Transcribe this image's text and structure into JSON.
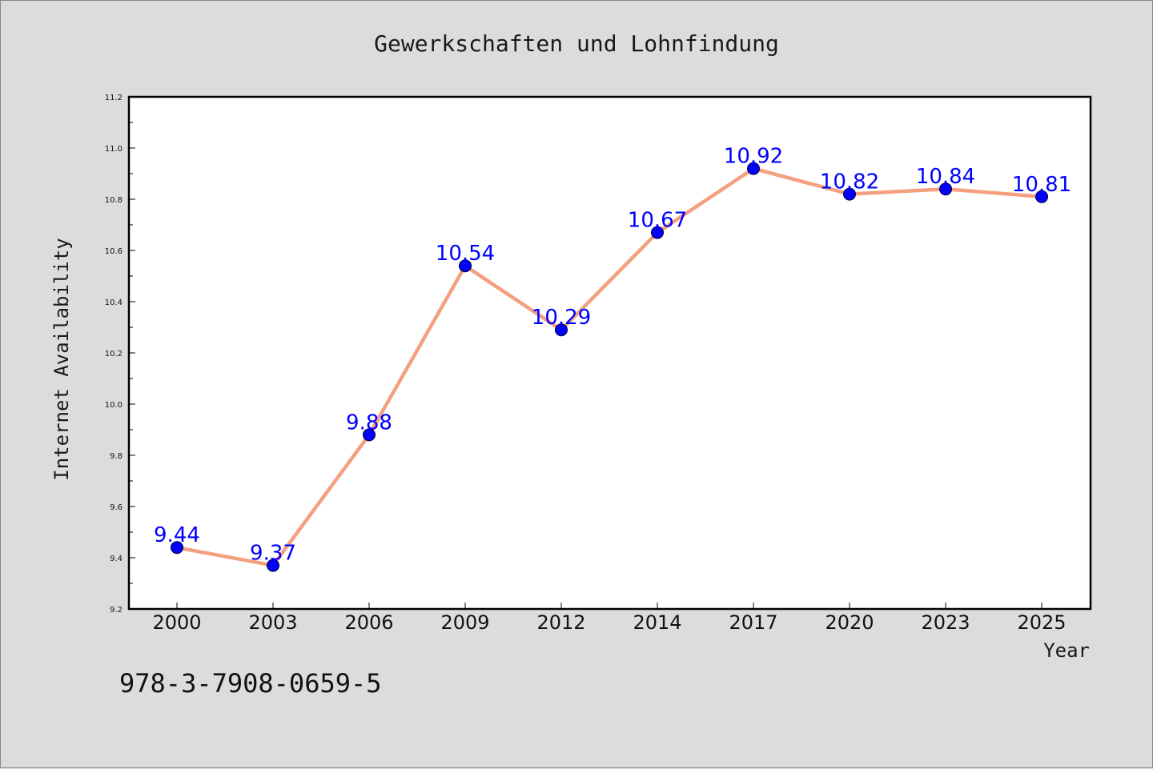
{
  "chart_data": {
    "type": "line",
    "title": "Gewerkschaften und Lohnfindung",
    "xlabel": "Year",
    "ylabel": "Internet Availability",
    "categories": [
      "2000",
      "2003",
      "2006",
      "2009",
      "2012",
      "2014",
      "2017",
      "2020",
      "2023",
      "2025"
    ],
    "series": [
      {
        "values": [
          9.44,
          9.37,
          9.88,
          10.54,
          10.29,
          10.67,
          10.92,
          10.82,
          10.84,
          10.81
        ],
        "value_labels": [
          "9.44",
          "9.37",
          "9.88",
          "10.54",
          "10.29",
          "10.67",
          "10.92",
          "10.82",
          "10.84",
          "10.81"
        ],
        "line_color": "#f4a07f",
        "marker_color": "#0000ff"
      }
    ],
    "ylim": [
      9.2,
      11.2
    ],
    "yticks": [
      "9.2",
      "9.4",
      "9.6",
      "9.8",
      "10.0",
      "10.2",
      "10.4",
      "10.6",
      "10.8",
      "11.0",
      "11.2"
    ],
    "grid": false,
    "legend": "none"
  },
  "footer_text": "978-3-7908-0659-5",
  "colors": {
    "background": "#dcdcdc",
    "plot_background": "#ffffff",
    "line": "#f4a07f",
    "marker": "#0000ff",
    "data_label": "#0000ff"
  }
}
